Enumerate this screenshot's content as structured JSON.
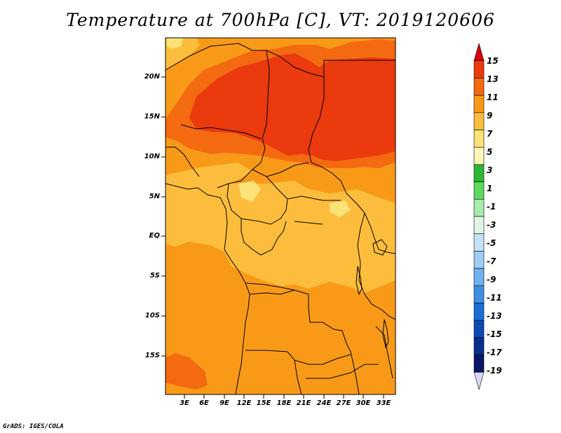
{
  "title": "Temperature at 700hPa [C], VT: 2019120606",
  "credit": "GrADS: IGES/COLA",
  "map": {
    "lat_labels": [
      "20N",
      "15N",
      "10N",
      "5N",
      "EQ",
      "5S",
      "10S",
      "15S"
    ],
    "lon_labels": [
      "3E",
      "6E",
      "9E",
      "12E",
      "15E",
      "18E",
      "21E",
      "24E",
      "27E",
      "30E",
      "33E"
    ]
  },
  "colorbar": {
    "labels": [
      "15",
      "13",
      "11",
      "9",
      "7",
      "5",
      "3",
      "1",
      "-1",
      "-3",
      "-5",
      "-7",
      "-9",
      "-11",
      "-13",
      "-15",
      "-17",
      "-19"
    ],
    "colors": [
      "#d7000a",
      "#ea3a0e",
      "#f46a10",
      "#f89a18",
      "#fdbd3c",
      "#fde278",
      "#fef7b8",
      "#2cb832",
      "#5ed95e",
      "#a7ecaa",
      "#e1f6e7",
      "#c5e1f8",
      "#9dcdf6",
      "#6eb2ee",
      "#3e8fe2",
      "#1c6ed3",
      "#0c4bb3",
      "#082e8e",
      "#0a1766",
      "#d9d9f5"
    ]
  }
}
